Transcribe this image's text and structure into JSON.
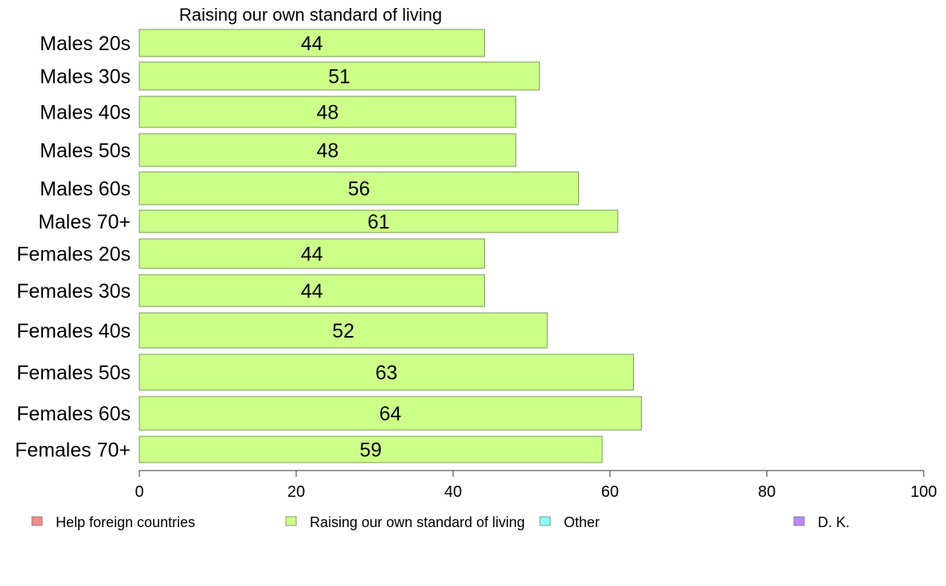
{
  "chart_data": {
    "type": "bar",
    "orientation": "horizontal",
    "title": "Raising our own standard of living",
    "categories": [
      "Males 20s",
      "Males 30s",
      "Males 40s",
      "Males 50s",
      "Males 60s",
      "Males 70+",
      "Females 20s",
      "Females 30s",
      "Females 40s",
      "Females 50s",
      "Females 60s",
      "Females 70+"
    ],
    "values": [
      44,
      51,
      48,
      48,
      56,
      61,
      44,
      44,
      52,
      63,
      64,
      59
    ],
    "value_labels": [
      "44",
      "51",
      "48",
      "48",
      "56",
      "61",
      "44",
      "44",
      "52",
      "63",
      "64",
      "59"
    ],
    "xlim": [
      0,
      100
    ],
    "x_ticks": [
      0,
      20,
      40,
      60,
      80,
      100
    ],
    "x_tick_labels": [
      "0",
      "20",
      "40",
      "60",
      "80",
      "100"
    ],
    "grid": false,
    "legend_position": "bottom",
    "legend": [
      {
        "label": "Help foreign countries",
        "color": "#f28b8b"
      },
      {
        "label": "Raising our own standard of living",
        "color": "#ccff88"
      },
      {
        "label": "Other",
        "color": "#88ffff"
      },
      {
        "label": "D. K.",
        "color": "#bb88ff"
      }
    ],
    "bar_color": "#ccff88",
    "bar_stroke": "#7a9a5a"
  }
}
